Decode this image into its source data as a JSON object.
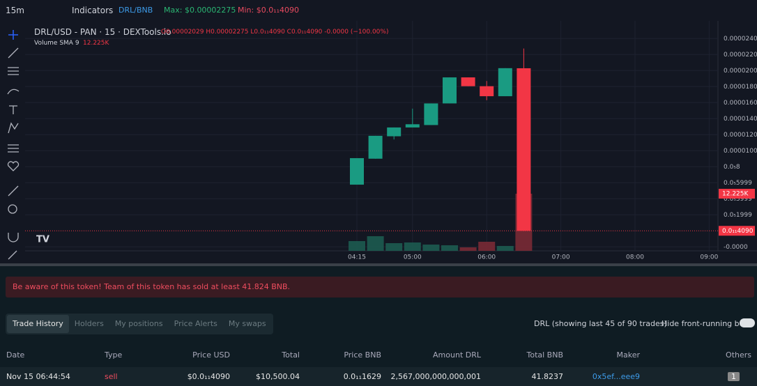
{
  "toolbar": {
    "interval": "15m",
    "indicators": "Indicators",
    "pair": "DRL/BNB",
    "max": "Max: $0.00002275",
    "min": "Min: $0.0₁₁4090"
  },
  "chart": {
    "title": "DRL/USD - PAN · 15 · DEXTools.io",
    "ohlc": "O0.00002029 H0.00002275 L0.0₁₁4090 C0.0₁₁4090 -0.0000 (−100.00%)",
    "volume_sma": "Volume SMA 9",
    "volume_sma_value": "12.225K",
    "last_price_label": "0.0₁₁4090",
    "open": [
      5.76e-06,
      9e-06,
      1.18e-05,
      1.29e-05,
      1.32e-05,
      1.59e-05,
      1.915e-05,
      1.805e-05,
      1.68e-05,
      2.029e-05
    ],
    "high": [
      9.07e-06,
      1.186e-05,
      1.29e-05,
      1.525e-05,
      1.59e-05,
      1.915e-05,
      1.915e-05,
      1.87e-05,
      2.03e-05,
      2.275e-05
    ],
    "low": [
      5.76e-06,
      9e-06,
      1.14e-05,
      1.29e-05,
      1.32e-05,
      1.59e-05,
      1.805e-05,
      1.63e-05,
      1.68e-05,
      4.09e-13
    ],
    "close": [
      9.07e-06,
      1.186e-05,
      1.29e-05,
      1.33e-05,
      1.59e-05,
      1.915e-05,
      1.805e-05,
      1.68e-05,
      2.03e-05,
      4.09e-13
    ],
    "volume": [
      2087,
      3130,
      1640,
      1790,
      1340,
      1190,
      745,
      1940,
      1040,
      12225
    ],
    "ylim": [
      -2.5e-06,
      2.62e-05
    ],
    "yticks": [
      {
        "value": 2.4e-05,
        "label": "0.00002400"
      },
      {
        "value": 2.2e-05,
        "label": "0.00002200"
      },
      {
        "value": 2e-05,
        "label": "0.00002000"
      },
      {
        "value": 1.8e-05,
        "label": "0.00001800"
      },
      {
        "value": 1.6e-05,
        "label": "0.00001600"
      },
      {
        "value": 1.4e-05,
        "label": "0.00001400"
      },
      {
        "value": 1.2e-05,
        "label": "0.00001200"
      },
      {
        "value": 1e-05,
        "label": "0.00001000"
      },
      {
        "value": 8e-06,
        "label": "0.0₅8"
      },
      {
        "value": 6e-06,
        "label": "0.0₅5999"
      },
      {
        "value": 4e-06,
        "label": "0.0₅3999"
      },
      {
        "value": 2e-06,
        "label": "0.0₅1999"
      },
      {
        "value": -2e-06,
        "label": "-0.0000"
      }
    ],
    "xlabels": [
      "04:15",
      "05:00",
      "06:00",
      "07:00",
      "08:00",
      "09:00"
    ]
  },
  "banner": "Be aware of this token! Team of this token has sold at least 41.824 BNB.",
  "tabs": [
    "Trade History",
    "Holders",
    "My positions",
    "Price Alerts",
    "My swaps"
  ],
  "trades_info": "DRL (showing last 45 of 90 trades)",
  "hide_bots": "Hide front-running bots",
  "table": {
    "headers": [
      "Date",
      "Type",
      "Price USD",
      "Total",
      "Price BNB",
      "Amount DRL",
      "Total BNB",
      "Maker",
      "Others"
    ],
    "rows": [
      [
        "Nov 15 06:44:54",
        "sell",
        "$0.0₁₁4090",
        "$10,500.04",
        "0.0₁₁1629",
        "2,567,000,000,000,001",
        "41.8237",
        "0x5ef...eee9",
        "1"
      ]
    ]
  }
}
